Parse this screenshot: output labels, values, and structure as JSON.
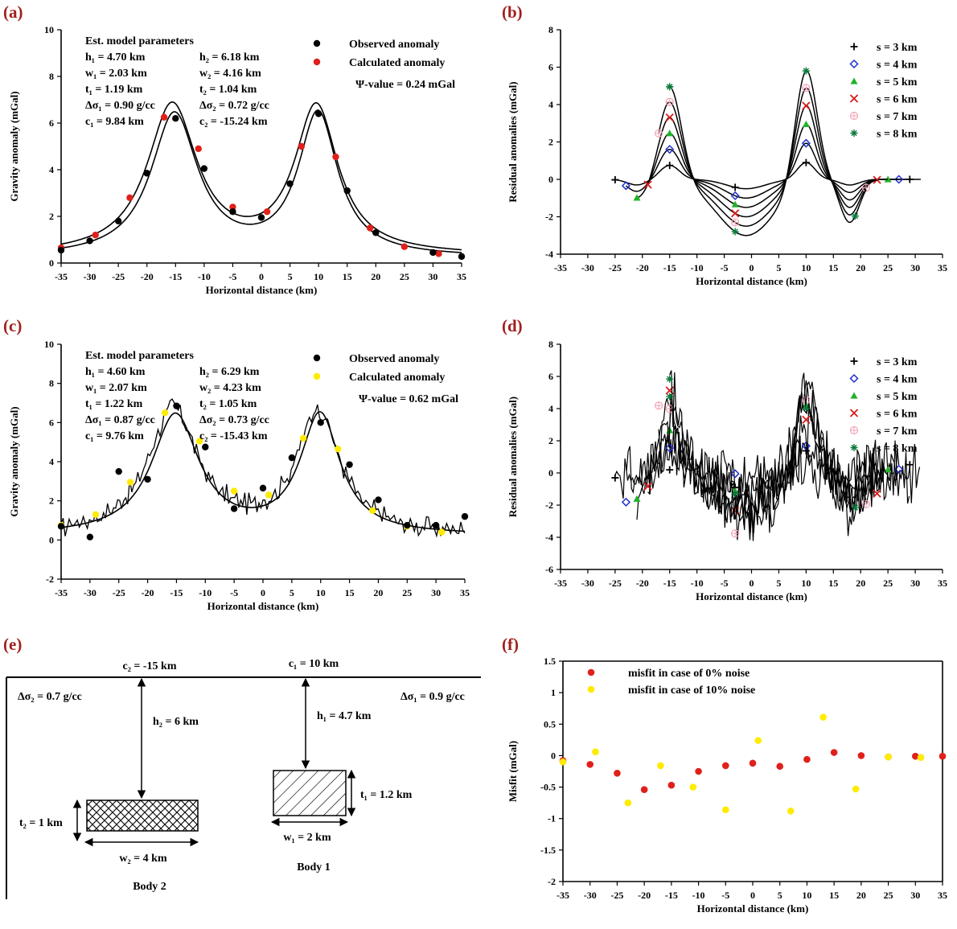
{
  "panels": {
    "a": "(a)",
    "b": "(b)",
    "c": "(c)",
    "d": "(d)",
    "e": "(e)",
    "f": "(f)"
  },
  "colors": {
    "observed": "#000000",
    "calculated_a": "#e0201b",
    "calculated_c": "#ffeb00",
    "residual_s3": "#000000",
    "residual_s4": "#1f2fd0",
    "residual_s5": "#21b22a",
    "residual_s6": "#d81b1b",
    "residual_s7": "#f2a5b6",
    "residual_s8": "#0b7a3b",
    "misfit_0": "#e0201b",
    "misfit_10": "#ffeb00"
  },
  "chart_data": [
    {
      "id": "a",
      "type": "line",
      "xlabel": "Horizontal distance (km)",
      "ylabel": "Gravity anomaly (mGal)",
      "xlim": [
        -35,
        35
      ],
      "ylim": [
        0,
        10
      ],
      "xticks": [
        -35,
        -30,
        -25,
        -20,
        -15,
        -10,
        -5,
        0,
        5,
        10,
        15,
        20,
        25,
        30,
        35
      ],
      "yticks": [
        0,
        2,
        4,
        6,
        8,
        10
      ],
      "legend": [
        "Observed anomaly",
        "Calculated anomaly"
      ],
      "psi": "Ψ-value = 0.24 mGal",
      "params_title": "Est. model parameters",
      "params": [
        [
          "h₁ = 4.70 km",
          "h₂ = 6.18 km"
        ],
        [
          "w₁ = 2.03 km",
          "w₂ = 4.16 km"
        ],
        [
          "t₁ = 1.19 km",
          "t₂ = 1.04 km"
        ],
        [
          "Δσ₁ = 0.90 g/cc",
          "Δσ₂ = 0.72 g/cc"
        ],
        [
          "c₁ = 9.84 km",
          "c₂ = -15.24 km"
        ]
      ],
      "observed": {
        "x": [
          -35,
          -30,
          -25,
          -20,
          -15,
          -10,
          -5,
          0,
          5,
          10,
          15,
          20,
          30,
          35
        ],
        "y": [
          0.55,
          0.95,
          1.8,
          3.85,
          6.2,
          4.05,
          2.2,
          1.95,
          3.4,
          6.4,
          3.1,
          1.3,
          0.45,
          0.28
        ]
      },
      "calculated": {
        "x": [
          -35,
          -29,
          -23,
          -17,
          -11,
          -5,
          1,
          7,
          13,
          19,
          25,
          31
        ],
        "y": [
          0.65,
          1.2,
          2.8,
          6.25,
          4.9,
          2.4,
          2.2,
          5.0,
          4.55,
          1.5,
          0.7,
          0.4
        ]
      }
    },
    {
      "id": "b",
      "type": "line",
      "xlabel": "Horizontal distance (km)",
      "ylabel": "Residual anomalies (mGal)",
      "xlim": [
        -35,
        35
      ],
      "ylim": [
        -4,
        8
      ],
      "xticks": [
        -35,
        -30,
        -25,
        -20,
        -15,
        -10,
        -5,
        0,
        5,
        10,
        15,
        20,
        25,
        30,
        35
      ],
      "yticks": [
        -4,
        -2,
        0,
        2,
        4,
        6,
        8
      ],
      "legend": [
        "s = 3 km",
        "s = 4 km",
        "s = 5 km",
        "s = 6 km",
        "s = 7 km",
        "s = 8 km"
      ]
    },
    {
      "id": "c",
      "type": "line",
      "xlabel": "Horizontal distance (km)",
      "ylabel": "Gravity anomaly (mGal)",
      "xlim": [
        -35,
        35
      ],
      "ylim": [
        -2,
        10
      ],
      "xticks": [
        -35,
        -30,
        -25,
        -20,
        -15,
        -10,
        -5,
        0,
        5,
        10,
        15,
        20,
        25,
        30,
        35
      ],
      "yticks": [
        -2,
        0,
        2,
        4,
        6,
        8,
        10
      ],
      "legend": [
        "Observed anomaly",
        "Calculated anomaly"
      ],
      "psi": "Ψ-value = 0.62 mGal",
      "params_title": "Est. model parameters",
      "params": [
        [
          "h₁ = 4.60 km",
          "h₂ = 6.29 km"
        ],
        [
          "w₁ = 2.07 km",
          "w₂ = 4.23 km"
        ],
        [
          "t₁ = 1.22 km",
          "t₂ = 1.05 km"
        ],
        [
          "Δσ₁ = 0.87 g/cc",
          "Δσ₂ = 0.73 g/cc"
        ],
        [
          "c₁ = 9.76 km",
          "c₂ = -15.43 km"
        ]
      ],
      "observed": {
        "x": [
          -35,
          -30,
          -25,
          -20,
          -15,
          -10,
          -5,
          0,
          5,
          10,
          15,
          20,
          25,
          30,
          35
        ],
        "y": [
          0.7,
          0.15,
          3.5,
          3.1,
          6.85,
          4.75,
          1.6,
          2.65,
          4.2,
          6.0,
          3.85,
          2.05,
          0.75,
          0.75,
          1.2
        ]
      },
      "calculated": {
        "x": [
          -35,
          -29,
          -23,
          -17,
          -11,
          -5,
          1,
          7,
          13,
          19,
          25,
          31
        ],
        "y": [
          0.75,
          1.3,
          2.95,
          6.5,
          5.05,
          2.5,
          2.3,
          5.2,
          4.65,
          1.5,
          0.7,
          0.4
        ]
      }
    },
    {
      "id": "d",
      "type": "line",
      "xlabel": "Horizontal distance (km)",
      "ylabel": "Residual anomalies (mGal)",
      "xlim": [
        -35,
        35
      ],
      "ylim": [
        -6,
        8
      ],
      "xticks": [
        -35,
        -30,
        -25,
        -20,
        -15,
        -10,
        -5,
        0,
        5,
        10,
        15,
        20,
        25,
        30,
        35
      ],
      "yticks": [
        -6,
        -4,
        -2,
        0,
        2,
        4,
        6,
        8
      ],
      "legend": [
        "s = 3 km",
        "s = 4 km",
        "s = 5 km",
        "s = 6 km",
        "s = 7 km",
        "s = 8 km"
      ]
    },
    {
      "id": "f",
      "type": "scatter",
      "xlabel": "Horizontal distance (km)",
      "ylabel": "Misfit (mGal)",
      "xlim": [
        -35,
        35
      ],
      "ylim": [
        -2,
        1.5
      ],
      "xticks": [
        -35,
        -30,
        -25,
        -20,
        -15,
        -10,
        -5,
        0,
        5,
        10,
        15,
        20,
        25,
        30,
        35
      ],
      "yticks": [
        -2,
        -1.5,
        -1,
        -0.5,
        0,
        0.5,
        1,
        1.5
      ],
      "series": [
        {
          "name": "misfit in case of 0% noise",
          "x": [
            -35,
            -30,
            -25,
            -20,
            -15,
            -10,
            -5,
            0,
            5,
            10,
            15,
            20,
            25,
            30,
            35
          ],
          "y": [
            -0.08,
            -0.14,
            -0.28,
            -0.54,
            -0.47,
            -0.25,
            -0.16,
            -0.12,
            -0.17,
            -0.06,
            0.05,
            0.0,
            -0.02,
            -0.01,
            -0.01
          ]
        },
        {
          "name": "misfit in case of 10% noise",
          "x": [
            -35,
            -29,
            -23,
            -17,
            -11,
            -5,
            1,
            7,
            13,
            19,
            25,
            31
          ],
          "y": [
            -0.1,
            0.06,
            -0.75,
            -0.16,
            -0.5,
            -0.86,
            0.24,
            -0.88,
            0.61,
            -0.53,
            -0.02,
            -0.03
          ]
        }
      ]
    }
  ],
  "diagram": {
    "c2_label": "c₂ = -15 km",
    "c1_label": "c₁ = 10 km",
    "ds2_label": "Δσ₂ = 0.7 g/cc",
    "ds1_label": "Δσ₁ = 0.9 g/cc",
    "h2_label": "h₂ = 6 km",
    "h1_label": "h₁ = 4.7 km",
    "t2_label": "t₂ = 1 km",
    "t1_label": "t₁ = 1.2 km",
    "w2_label": "w₂ = 4 km",
    "w1_label": "w₁ = 2 km",
    "body2_label": "Body 2",
    "body1_label": "Body 1"
  }
}
